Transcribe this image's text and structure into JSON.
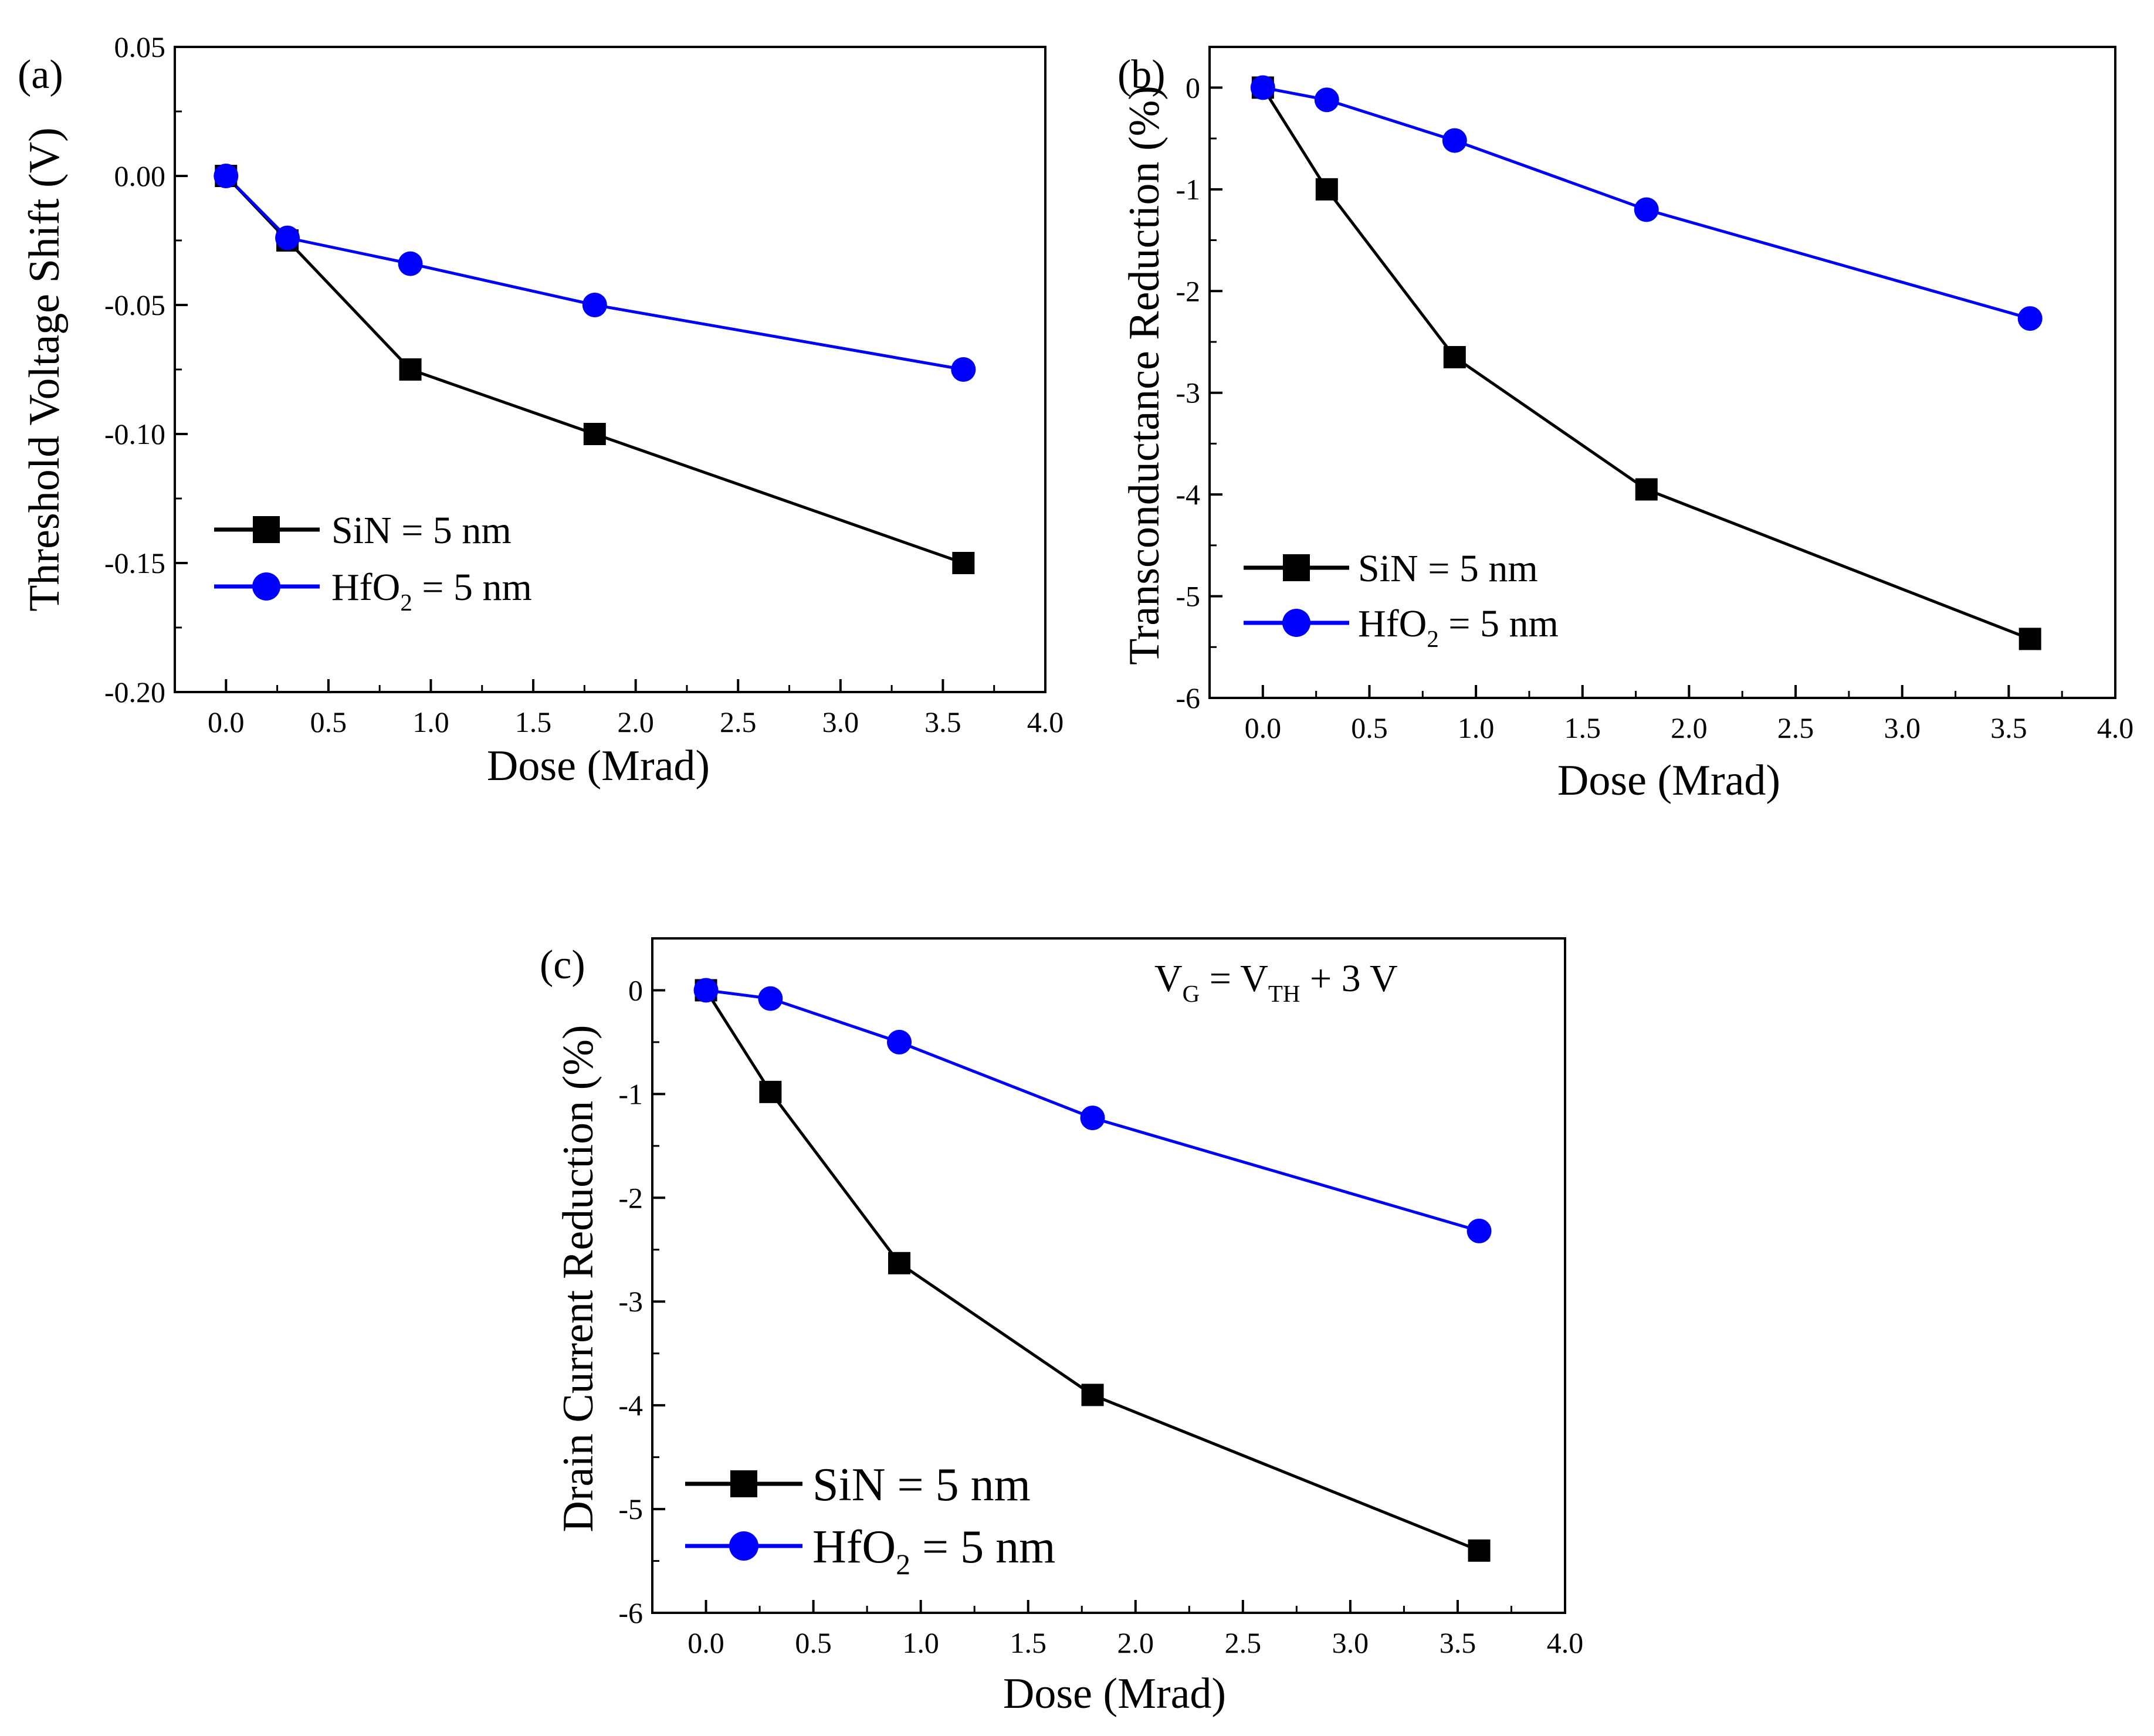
{
  "figure": {
    "legend": {
      "sin": {
        "label": "SiN = 5 nm"
      },
      "hfo2": {
        "prefix": "HfO",
        "subscript": "2",
        "suffix": " = 5 nm"
      }
    },
    "annotation_c": {
      "v": "V",
      "g_sub": "G",
      "eq": " = V",
      "th_sub": "TH",
      "rest": " + 3 V"
    }
  },
  "chart_data": [
    {
      "panel": "(a)",
      "type": "line",
      "title": "",
      "xlabel": "Dose (Mrad)",
      "ylabel": "Threshold Voltage Shift (V)",
      "xlim": [
        -0.25,
        4.0
      ],
      "ylim": [
        -0.2,
        0.05
      ],
      "xticks": [
        0.0,
        0.5,
        1.0,
        1.5,
        2.0,
        2.5,
        3.0,
        3.5,
        4.0
      ],
      "xtick_labels": [
        "0.0",
        "0.5",
        "1.0",
        "1.5",
        "2.0",
        "2.5",
        "3.0",
        "3.5",
        "4.0"
      ],
      "yticks": [
        0.05,
        0.0,
        -0.05,
        -0.1,
        -0.15,
        -0.2
      ],
      "ytick_labels": [
        "0.05",
        "0.00",
        "-0.05",
        "-0.10",
        "-0.15",
        "-0.20"
      ],
      "legend_position": "lower-left",
      "series": [
        {
          "name": "SiN = 5 nm",
          "color": "#000000",
          "marker": "square",
          "x": [
            0,
            0.3,
            0.9,
            1.8,
            3.6
          ],
          "y": [
            0,
            -0.025,
            -0.075,
            -0.1,
            -0.15
          ]
        },
        {
          "name": "HfO2 = 5 nm",
          "color": "#0000ff",
          "marker": "circle",
          "x": [
            0,
            0.3,
            0.9,
            1.8,
            3.6
          ],
          "y": [
            0,
            -0.024,
            -0.034,
            -0.05,
            -0.075
          ]
        }
      ]
    },
    {
      "panel": "(b)",
      "type": "line",
      "title": "",
      "xlabel": "Dose (Mrad)",
      "ylabel": "Transconductance Reduction (%)",
      "xlim": [
        -0.25,
        4.0
      ],
      "ylim": [
        -6,
        0.4
      ],
      "xticks": [
        0.0,
        0.5,
        1.0,
        1.5,
        2.0,
        2.5,
        3.0,
        3.5,
        4.0
      ],
      "xtick_labels": [
        "0.0",
        "0.5",
        "1.0",
        "1.5",
        "2.0",
        "2.5",
        "3.0",
        "3.5",
        "4.0"
      ],
      "yticks": [
        0,
        -1,
        -2,
        -3,
        -4,
        -5,
        -6
      ],
      "ytick_labels": [
        "0",
        "-1",
        "-2",
        "-3",
        "-4",
        "-5",
        "-6"
      ],
      "legend_position": "lower-left",
      "series": [
        {
          "name": "SiN = 5 nm",
          "color": "#000000",
          "marker": "square",
          "x": [
            0,
            0.3,
            0.9,
            1.8,
            3.6
          ],
          "y": [
            0,
            -1.0,
            -2.65,
            -3.95,
            -5.42
          ]
        },
        {
          "name": "HfO2 = 5 nm",
          "color": "#0000ff",
          "marker": "circle",
          "x": [
            0,
            0.3,
            0.9,
            1.8,
            3.6
          ],
          "y": [
            0,
            -0.12,
            -0.52,
            -1.2,
            -2.27
          ]
        }
      ]
    },
    {
      "panel": "(c)",
      "type": "line",
      "title": "",
      "xlabel": "Dose (Mrad)",
      "ylabel": "Drain Current Reduction (%)",
      "xlim": [
        -0.25,
        4.0
      ],
      "ylim": [
        -6,
        0.5
      ],
      "xticks": [
        0.0,
        0.5,
        1.0,
        1.5,
        2.0,
        2.5,
        3.0,
        3.5,
        4.0
      ],
      "xtick_labels": [
        "0.0",
        "0.5",
        "1.0",
        "1.5",
        "2.0",
        "2.5",
        "3.0",
        "3.5",
        "4.0"
      ],
      "yticks": [
        0,
        -1,
        -2,
        -3,
        -4,
        -5,
        -6
      ],
      "ytick_labels": [
        "0",
        "-1",
        "-2",
        "-3",
        "-4",
        "-5",
        "-6"
      ],
      "legend_position": "lower-left",
      "annotation": "VG = VTH + 3 V",
      "series": [
        {
          "name": "SiN = 5 nm",
          "color": "#000000",
          "marker": "square",
          "x": [
            0,
            0.3,
            0.9,
            1.8,
            3.6
          ],
          "y": [
            0,
            -0.98,
            -2.63,
            -3.9,
            -5.4
          ]
        },
        {
          "name": "HfO2 = 5 nm",
          "color": "#0000ff",
          "marker": "circle",
          "x": [
            0,
            0.3,
            0.9,
            1.8,
            3.6
          ],
          "y": [
            0,
            -0.08,
            -0.5,
            -1.23,
            -2.32
          ]
        }
      ]
    }
  ]
}
